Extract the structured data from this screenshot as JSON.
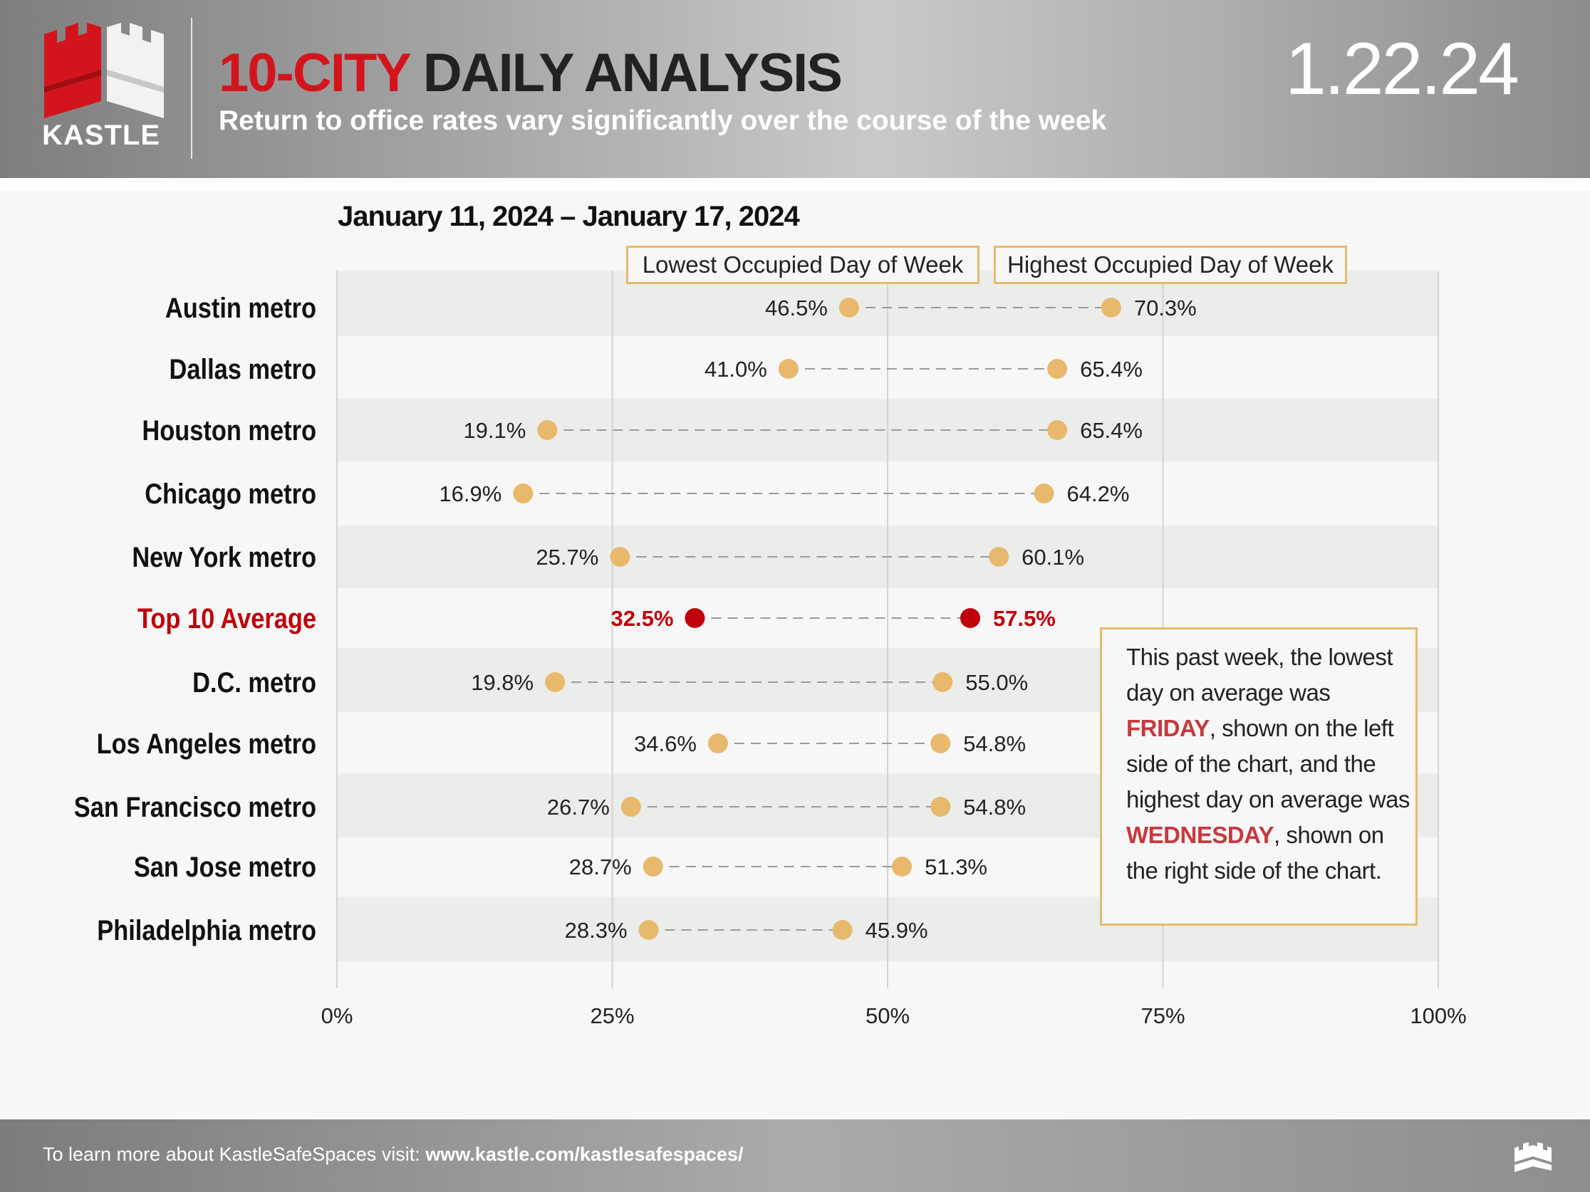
{
  "header": {
    "logo_text": "KASTLE",
    "title_red": "10-CITY",
    "title_dark": "DAILY ANALYSIS",
    "subtitle": "Return to office rates vary significantly over the course of the week",
    "date": "1.22.24"
  },
  "legend": {
    "lowest": "Lowest Occupied Day of Week",
    "highest": "Highest Occupied Day of Week"
  },
  "note": {
    "part1": "This past week, the lowest day on average was ",
    "low_day": "FRIDAY",
    "part2": ", shown on the left side of the chart, and the highest day on average was ",
    "high_day": "WEDNESDAY",
    "part3": ", shown on the right side of the chart."
  },
  "footer": {
    "text": "To learn more about KastleSafeSpaces visit: ",
    "link": "www.kastle.com/kastlesafespaces/"
  },
  "colors": {
    "brand_red": "#d4141c",
    "dot": "#e8b96c",
    "average_dot": "#c0000b",
    "box_border": "#e8b96c"
  },
  "chart_data": {
    "type": "dumbbell",
    "title": "January 11, 2024 – January 17, 2024",
    "xlim": [
      0,
      100
    ],
    "x_ticks": [
      "0%",
      "25%",
      "50%",
      "75%",
      "100%"
    ],
    "grid": true,
    "series": [
      {
        "name": "Lowest Occupied Day of Week"
      },
      {
        "name": "Highest Occupied Day of Week"
      }
    ],
    "rows": [
      {
        "label": "Austin metro",
        "low": 46.5,
        "high": 70.3,
        "low_label": "46.5%",
        "high_label": "70.3%"
      },
      {
        "label": "Dallas metro",
        "low": 41.0,
        "high": 65.4,
        "low_label": "41.0%",
        "high_label": "65.4%"
      },
      {
        "label": "Houston metro",
        "low": 19.1,
        "high": 65.4,
        "low_label": "19.1%",
        "high_label": "65.4%"
      },
      {
        "label": "Chicago metro",
        "low": 16.9,
        "high": 64.2,
        "low_label": "16.9%",
        "high_label": "64.2%"
      },
      {
        "label": "New York metro",
        "low": 25.7,
        "high": 60.1,
        "low_label": "25.7%",
        "high_label": "60.1%"
      },
      {
        "label": "Top 10 Average",
        "low": 32.5,
        "high": 57.5,
        "low_label": "32.5%",
        "high_label": "57.5%",
        "highlight": true
      },
      {
        "label": "D.C. metro",
        "low": 19.8,
        "high": 55.0,
        "low_label": "19.8%",
        "high_label": "55.0%"
      },
      {
        "label": "Los Angeles metro",
        "low": 34.6,
        "high": 54.8,
        "low_label": "34.6%",
        "high_label": "54.8%"
      },
      {
        "label": "San Francisco metro",
        "low": 26.7,
        "high": 54.8,
        "low_label": "26.7%",
        "high_label": "54.8%"
      },
      {
        "label": "San Jose metro",
        "low": 28.7,
        "high": 51.3,
        "low_label": "28.7%",
        "high_label": "51.3%"
      },
      {
        "label": "Philadelphia metro",
        "low": 28.3,
        "high": 45.9,
        "low_label": "28.3%",
        "high_label": "45.9%"
      }
    ]
  }
}
